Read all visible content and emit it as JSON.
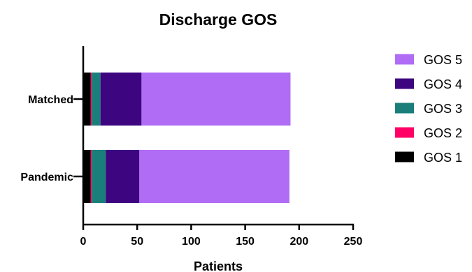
{
  "chart_data": {
    "type": "bar",
    "orientation": "horizontal",
    "stacked": true,
    "title": "Discharge GOS",
    "xlabel": "Patients",
    "ylabel": "",
    "xlim": [
      0,
      250
    ],
    "x_ticks": [
      0,
      50,
      100,
      150,
      200,
      250
    ],
    "categories": [
      "Matched",
      "Pandemic"
    ],
    "series": [
      {
        "name": "GOS 1",
        "color": "#000000",
        "values": [
          7,
          7
        ]
      },
      {
        "name": "GOS 2",
        "color": "#ff0066",
        "values": [
          1,
          1
        ]
      },
      {
        "name": "GOS 3",
        "color": "#1a7f7a",
        "values": [
          8,
          13
        ]
      },
      {
        "name": "GOS 4",
        "color": "#3d0580",
        "values": [
          38,
          31
        ]
      },
      {
        "name": "GOS 5",
        "color": "#b06cf5",
        "values": [
          138,
          139
        ]
      }
    ],
    "legend_order": [
      "GOS 5",
      "GOS 4",
      "GOS 3",
      "GOS 2",
      "GOS 1"
    ],
    "legend_position": "right",
    "grid": false
  }
}
